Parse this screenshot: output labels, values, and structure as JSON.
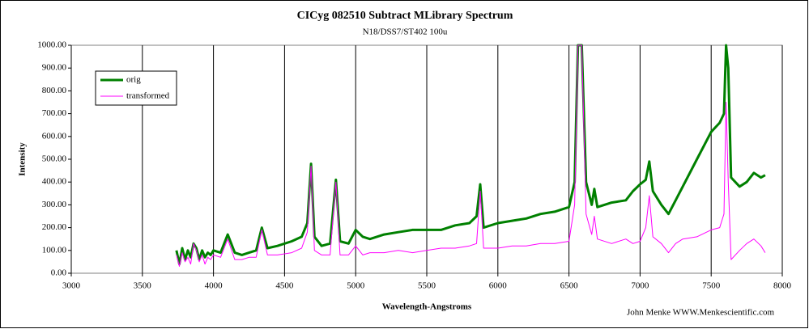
{
  "chart_data": {
    "type": "line",
    "title": "CICyg 082510 Subtract MLibrary Spectrum",
    "subtitle": "N18/DSS7/ST402  100u",
    "x_label": "Wavelength-Angstroms",
    "y_label": "Intensity",
    "annotation": "John Menke  WWW.Menkescientific.com",
    "x": [
      3740,
      3760,
      3780,
      3800,
      3820,
      3840,
      3860,
      3880,
      3900,
      3920,
      3940,
      3960,
      3980,
      4000,
      4050,
      4100,
      4150,
      4200,
      4250,
      4300,
      4340,
      4380,
      4450,
      4550,
      4620,
      4660,
      4686,
      4710,
      4760,
      4820,
      4861,
      4890,
      4950,
      5000,
      5050,
      5100,
      5200,
      5300,
      5400,
      5500,
      5600,
      5700,
      5800,
      5850,
      5876,
      5900,
      6000,
      6100,
      6200,
      6300,
      6400,
      6500,
      6540,
      6563,
      6590,
      6620,
      6660,
      6678,
      6700,
      6800,
      6900,
      6950,
      7000,
      7040,
      7065,
      7090,
      7150,
      7200,
      7250,
      7300,
      7400,
      7500,
      7560,
      7590,
      7605,
      7620,
      7640,
      7700,
      7750,
      7800,
      7850,
      7880
    ],
    "series": [
      {
        "name": "orig",
        "color": "#008000",
        "width": 3,
        "values": [
          100,
          40,
          110,
          60,
          100,
          70,
          130,
          110,
          60,
          100,
          70,
          90,
          80,
          100,
          90,
          170,
          90,
          80,
          90,
          100,
          200,
          110,
          120,
          140,
          160,
          220,
          480,
          160,
          120,
          130,
          410,
          140,
          130,
          190,
          160,
          150,
          170,
          180,
          190,
          190,
          190,
          210,
          220,
          250,
          390,
          200,
          220,
          230,
          240,
          260,
          270,
          290,
          400,
          1000,
          1000,
          400,
          300,
          370,
          290,
          310,
          320,
          360,
          390,
          410,
          490,
          360,
          300,
          260,
          320,
          380,
          500,
          620,
          660,
          700,
          1000,
          900,
          420,
          380,
          400,
          440,
          420,
          430
        ]
      },
      {
        "name": "transformed",
        "color": "#ff00ff",
        "width": 1,
        "values": [
          80,
          30,
          90,
          50,
          70,
          40,
          130,
          100,
          50,
          80,
          40,
          70,
          60,
          80,
          70,
          150,
          60,
          60,
          70,
          70,
          190,
          80,
          80,
          90,
          110,
          180,
          470,
          100,
          80,
          80,
          400,
          80,
          80,
          120,
          80,
          90,
          90,
          100,
          90,
          100,
          110,
          110,
          120,
          130,
          360,
          110,
          110,
          120,
          120,
          130,
          130,
          140,
          300,
          1000,
          1000,
          260,
          170,
          250,
          150,
          130,
          150,
          130,
          140,
          200,
          340,
          160,
          130,
          90,
          130,
          150,
          160,
          190,
          200,
          260,
          750,
          400,
          60,
          100,
          130,
          150,
          120,
          90
        ]
      }
    ],
    "xlim": [
      3000,
      8000
    ],
    "xticks": [
      3000,
      3500,
      4000,
      4500,
      5000,
      5500,
      6000,
      6500,
      7000,
      7500,
      8000
    ],
    "ylim": [
      0,
      1000
    ],
    "yticks": [
      {
        "value": 0,
        "label": "0.00"
      },
      {
        "value": 100,
        "label": "100.00"
      },
      {
        "value": 200,
        "label": "200.00"
      },
      {
        "value": 300,
        "label": "300.00"
      },
      {
        "value": 400,
        "label": "400.00"
      },
      {
        "value": 500,
        "label": "500.00"
      },
      {
        "value": 600,
        "label": "600.00"
      },
      {
        "value": 700,
        "label": "700.00"
      },
      {
        "value": 800,
        "label": "800.00"
      },
      {
        "value": 900,
        "label": "900.00"
      },
      {
        "value": 1000,
        "label": "1000.00"
      }
    ],
    "grid": "x",
    "legend": "top-left"
  }
}
